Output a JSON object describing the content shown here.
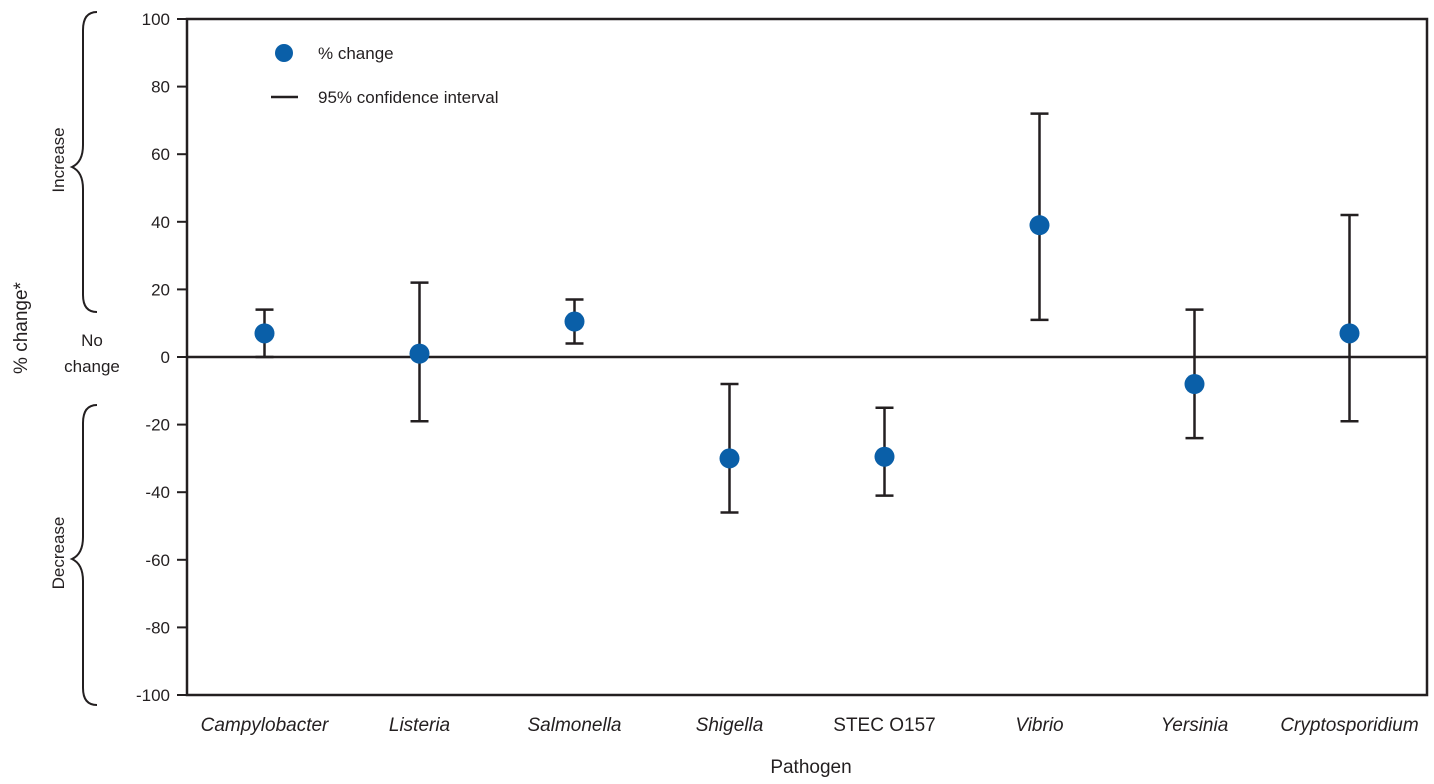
{
  "chart_data": {
    "type": "scatter",
    "xlabel": "Pathogen",
    "ylabel": "% change*",
    "ylim": [
      -100,
      100
    ],
    "yticks": [
      100,
      80,
      60,
      40,
      20,
      0,
      -20,
      -40,
      -60,
      -80,
      -100
    ],
    "categories": [
      {
        "label": "Campylobacter",
        "italic": true
      },
      {
        "label": "Listeria",
        "italic": true
      },
      {
        "label": "Salmonella",
        "italic": true
      },
      {
        "label": "Shigella",
        "italic": true
      },
      {
        "label": "STEC O157",
        "italic": false
      },
      {
        "label": "Vibrio",
        "italic": true
      },
      {
        "label": "Yersinia",
        "italic": true
      },
      {
        "label": "Cryptosporidium",
        "italic": true
      }
    ],
    "series": [
      {
        "name": "% change",
        "values": [
          7,
          1,
          10.5,
          -30,
          -29.5,
          39,
          -8,
          7
        ],
        "ci_lower": [
          0,
          -19,
          4,
          -46,
          -41,
          11,
          -24,
          -19
        ],
        "ci_upper": [
          14,
          22,
          17,
          -8,
          -15,
          72,
          14,
          42
        ]
      }
    ],
    "legend": {
      "position": "top-left",
      "marker_label": "% change",
      "line_label": "95% confidence interval"
    },
    "side_annotations": {
      "increase": "Increase",
      "decrease": "Decrease",
      "no_change_line1": "No",
      "no_change_line2": "change"
    },
    "colors": {
      "marker": "#0a5fa8",
      "line": "#231f20"
    },
    "grid": false
  }
}
